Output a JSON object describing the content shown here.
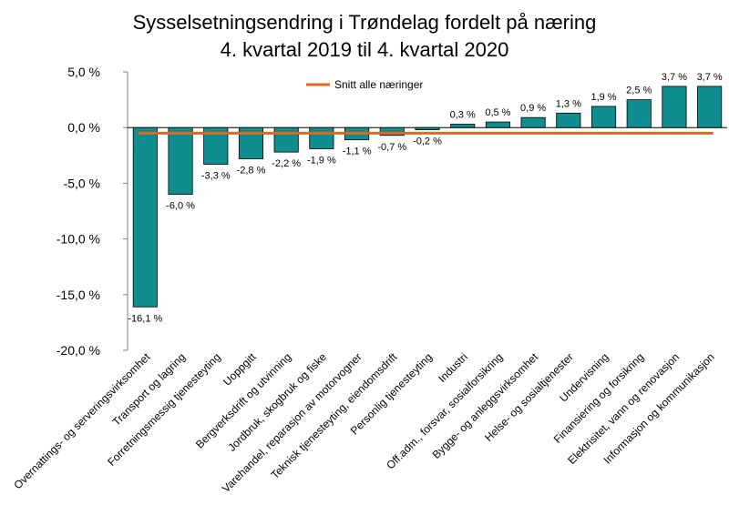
{
  "chart_data": {
    "type": "bar",
    "title": "Sysselsetningsendring i Trøndelag fordelt på næring",
    "subtitle": "4. kvartal 2019 til 4. kvartal 2020",
    "xlabel": "",
    "ylabel": "",
    "ylim": [
      -20,
      5
    ],
    "yticks": [
      5,
      0,
      -5,
      -10,
      -15,
      -20
    ],
    "ytick_labels": [
      "5,0 %",
      "0,0 %",
      "-5,0 %",
      "-10,0 %",
      "-15,0 %",
      "-20,0 %"
    ],
    "grid": false,
    "categories": [
      "Overnattings- og serveringsvirksomhet",
      "Transport og lagring",
      "Forretningsmessig tjenesteyting",
      "Uoppgitt",
      "Bergverksdrift og utvinning",
      "Jordbruk, skogbruk og fiske",
      "Varehandel, reparasjon av motorvogner",
      "Teknisk tjenesteyting, eiendomsdrift",
      "Personlig tjenesteyting",
      "Industri",
      "Off.adm., forsvar, sosialforsikring",
      "Bygge- og anleggsvirksomhet",
      "Helse- og sosialtjenester",
      "Undervisning",
      "Finansiering og forsikring",
      "Elektrisitet, vann og renovasjon",
      "Informasjon og kommunikasjon"
    ],
    "values": [
      -16.1,
      -6.0,
      -3.3,
      -2.8,
      -2.2,
      -1.9,
      -1.1,
      -0.7,
      -0.2,
      0.3,
      0.5,
      0.9,
      1.3,
      1.9,
      2.5,
      3.7,
      3.7
    ],
    "value_labels": [
      "-16,1 %",
      "-6,0 %",
      "-3,3 %",
      "-2,8 %",
      "-2,2 %",
      "-1,9 %",
      "-1,1 %",
      "-0,7 %",
      "-0,2 %",
      "0,3 %",
      "0,5 %",
      "0,9 %",
      "1,3 %",
      "1,9 %",
      "2,5 %",
      "3,7 %",
      "3,7 %"
    ],
    "reference_line": {
      "name": "Snitt alle næringer",
      "value": -0.5
    },
    "legend_position": "top",
    "colors": {
      "bar": "#0f8d8f",
      "bar_edge": "#000000",
      "reference_line": "#e0671f",
      "axis": "#808080"
    }
  }
}
